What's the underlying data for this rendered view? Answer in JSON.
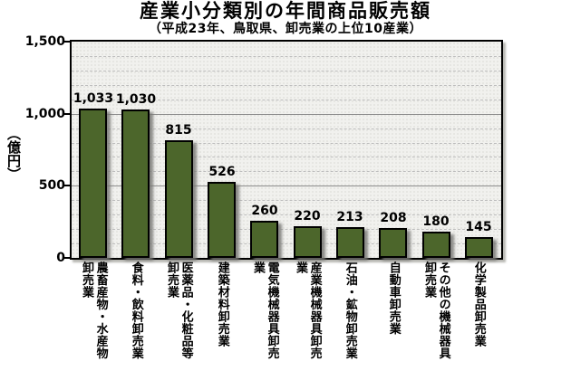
{
  "page": {
    "title": "産業小分類別の年間商品販売額",
    "subtitle": "（平成23年、鳥取県、卸売業の上位10産業）"
  },
  "y_axis": {
    "unit_label": "（億円）",
    "ticks": [
      "1,500",
      "1,000",
      "500",
      "0"
    ]
  },
  "chart_data": {
    "type": "bar",
    "title": "産業小分類別の年間商品販売額",
    "subtitle": "（平成23年、鳥取県、卸売業の上位10産業）",
    "categories": [
      "農畜産物・水産物卸売業",
      "食料・飲料卸売業",
      "医薬品・化粧品等卸売業",
      "建築材料卸売業",
      "電気機械器具卸売業",
      "産業機械器具卸売業",
      "石油・鉱物卸売業",
      "自動車卸売業",
      "その他の機械器具卸売業",
      "化学製品卸売業"
    ],
    "category_display": [
      "農畜産物・水産物\n卸売業",
      "食料・飲料卸売業",
      "医薬品・化粧品等\n卸売業",
      "建築材料卸売業",
      "電気機械器具卸売業",
      "産業機械器具卸売業",
      "石油・鉱物卸売業",
      "自動車卸売業",
      "その他の機械器具\n卸売業",
      "化学製品卸売業"
    ],
    "values": [
      1033,
      1030,
      815,
      526,
      260,
      220,
      213,
      208,
      180,
      145
    ],
    "value_labels": [
      "1,033",
      "1,030",
      "815",
      "526",
      "260",
      "220",
      "213",
      "208",
      "180",
      "145"
    ],
    "ylabel": "億円",
    "ylim": [
      0,
      1500
    ],
    "y_major_step": 500,
    "y_minor_step": 100,
    "grid": true,
    "legend": false,
    "bar_color": "#4C662B",
    "bar_border_color": "#000000",
    "plot_bg": "#F1F1EE"
  }
}
